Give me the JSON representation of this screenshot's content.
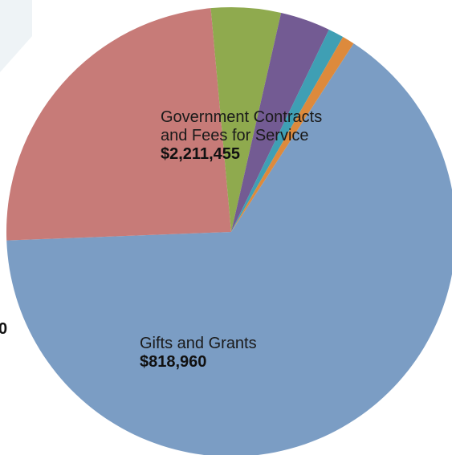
{
  "chart_data": {
    "type": "pie",
    "title": "",
    "slices": [
      {
        "label": "Government Contracts and Fees for Service",
        "label_lines": [
          "Government Contracts",
          "and Fees for Service"
        ],
        "value_text": "$2,211,455",
        "value": 2211455,
        "color": "#7b9dc4"
      },
      {
        "label": "Gifts and Grants",
        "label_lines": [
          "Gifts and Grants"
        ],
        "value_text": "$818,960",
        "value": 818960,
        "color": "#c77b78"
      },
      {
        "label": "",
        "label_lines": [],
        "value_text": "",
        "value": 170000,
        "color": "#8faa4e"
      },
      {
        "label": "",
        "label_lines": [],
        "value_text": "",
        "value": 122000,
        "color": "#735b93"
      },
      {
        "label": "",
        "label_lines": [],
        "value_text": "",
        "value": 38000,
        "color": "#3f9fb4"
      },
      {
        "label": "",
        "label_lines": [],
        "value_text": "",
        "value": 30000,
        "color": "#dd8a3c"
      }
    ],
    "edge_fragment_text": "0",
    "legend": "none",
    "background_shape_color": "#eef3f6"
  }
}
